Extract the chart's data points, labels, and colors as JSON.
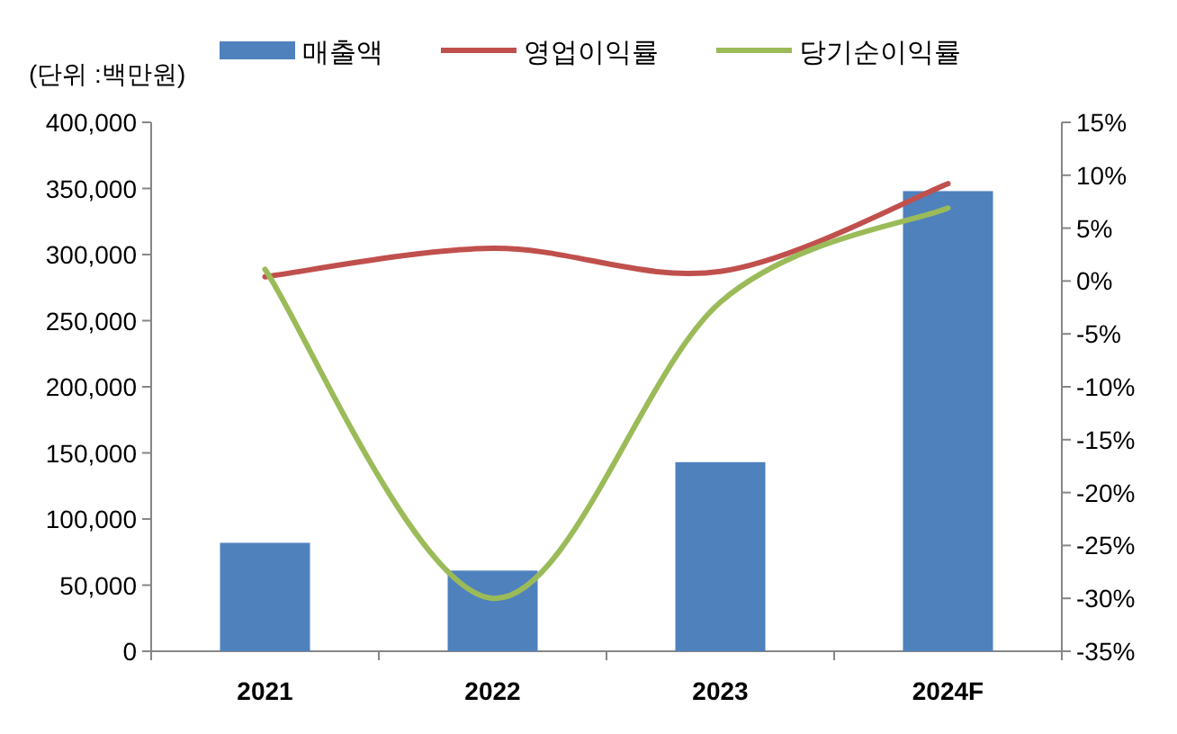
{
  "chart_data": {
    "type": "bar",
    "categories": [
      "2021",
      "2022",
      "2023",
      "2024F"
    ],
    "series": [
      {
        "name": "매출액",
        "color": "#4f81bd",
        "values": [
          82000,
          61000,
          143000,
          348000
        ]
      },
      {
        "name": "영업이익률",
        "type": "line",
        "axis": "y2",
        "color": "#c0504d",
        "values": [
          0.4,
          3.1,
          0.9,
          9.2
        ]
      },
      {
        "name": "당기순이익률",
        "type": "line",
        "axis": "y2",
        "color": "#9bbb59",
        "values": [
          1.1,
          -30,
          -2,
          6.9
        ]
      }
    ],
    "ylim": [
      0,
      400000
    ],
    "yticks": [
      0,
      {
        "value": 50000,
        "label": "50,000"
      },
      {
        "value": 100000,
        "label": "100,000"
      },
      {
        "value": 150000,
        "label": "150,000"
      },
      {
        "value": 200000,
        "label": "200,000"
      },
      {
        "value": 250000,
        "label": "250,000"
      },
      {
        "value": 300000,
        "label": "300,000"
      },
      {
        "value": 350000,
        "label": "350,000"
      },
      {
        "value": 400000,
        "label": "400,000"
      }
    ],
    "y2lim": [
      -35,
      15
    ],
    "y2ticks": [
      {
        "value": -35,
        "label": "-35%"
      },
      {
        "value": -30,
        "label": "-30%"
      },
      {
        "value": -25,
        "label": "-25%"
      },
      {
        "value": -20,
        "label": "-20%"
      },
      {
        "value": -15,
        "label": "-15%"
      },
      {
        "value": -10,
        "label": "-10%"
      },
      {
        "value": -5,
        "label": "-5%"
      },
      {
        "value": 0,
        "label": "0%"
      },
      {
        "value": 5,
        "label": "5%"
      },
      {
        "value": 10,
        "label": "10%"
      },
      {
        "value": 15,
        "label": "15%"
      }
    ],
    "annotations": [
      "(단위 :백만원)"
    ],
    "legend": "top",
    "grid": false
  }
}
